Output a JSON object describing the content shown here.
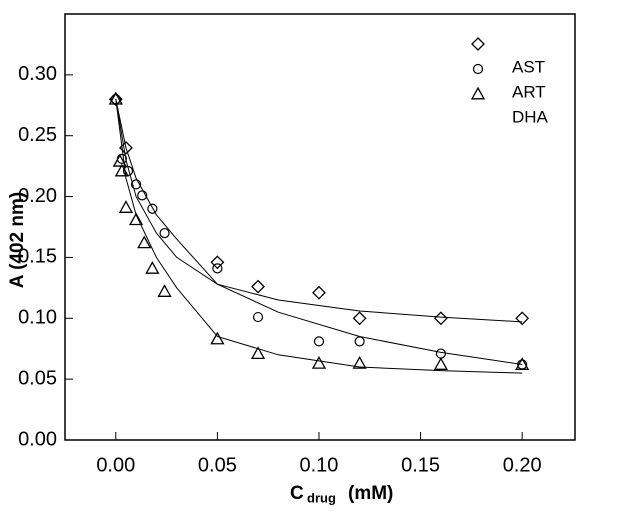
{
  "chart_data": {
    "type": "scatter",
    "ylabel": "A (402 nm)",
    "xlabel": {
      "main": "C",
      "sub": "drug",
      "unit": "(mM)"
    },
    "xlim": [
      -0.025,
      0.226
    ],
    "ylim": [
      0,
      0.35
    ],
    "xticks": [
      {
        "value": 0,
        "label": "0.00"
      },
      0.05,
      {
        "value": 0.1,
        "label": "0.10"
      },
      0.15,
      {
        "value": 0.2,
        "label": "0.20"
      }
    ],
    "yticks": [
      {
        "value": 0,
        "label": "0.00"
      },
      0.05,
      {
        "value": 0.1,
        "label": "0.10"
      },
      0.15,
      {
        "value": 0.2,
        "label": "0.20"
      },
      0.25,
      {
        "value": 0.3,
        "label": "0.30"
      }
    ],
    "series": [
      {
        "name": "AST",
        "marker": "diamond",
        "color": "#000000",
        "x": [
          0,
          0.005,
          0.05,
          0.07,
          0.1,
          0.12,
          0.16,
          0.2
        ],
        "values": [
          0.28,
          0.24,
          0.146,
          0.126,
          0.121,
          0.1,
          0.1,
          0.1
        ]
      },
      {
        "name": "ART",
        "marker": "circle",
        "color": "#000000",
        "x": [
          0,
          0.003,
          0.006,
          0.01,
          0.013,
          0.018,
          0.024,
          0.05,
          0.07,
          0.1,
          0.12,
          0.16,
          0.2
        ],
        "values": [
          0.28,
          0.231,
          0.221,
          0.21,
          0.201,
          0.19,
          0.17,
          0.141,
          0.101,
          0.081,
          0.081,
          0.071,
          0.062
        ]
      },
      {
        "name": "DHA",
        "marker": "triangle",
        "color": "#000000",
        "x": [
          0,
          0.002,
          0.003,
          0.005,
          0.01,
          0.014,
          0.018,
          0.024,
          0.05,
          0.07,
          0.1,
          0.12,
          0.16,
          0.2
        ],
        "values": [
          0.28,
          0.229,
          0.221,
          0.191,
          0.181,
          0.162,
          0.141,
          0.122,
          0.083,
          0.071,
          0.063,
          0.063,
          0.062,
          0.062
        ]
      }
    ],
    "fit_curves": [
      {
        "x": [
          0,
          0.005,
          0.01,
          0.02,
          0.03,
          0.05,
          0.08,
          0.12,
          0.16,
          0.2
        ],
        "values": [
          0.28,
          0.23,
          0.2,
          0.17,
          0.15,
          0.128,
          0.115,
          0.106,
          0.101,
          0.097
        ]
      },
      {
        "x": [
          0,
          0.005,
          0.01,
          0.02,
          0.03,
          0.05,
          0.08,
          0.12,
          0.16,
          0.2
        ],
        "values": [
          0.28,
          0.24,
          0.215,
          0.185,
          0.165,
          0.128,
          0.105,
          0.085,
          0.072,
          0.062
        ]
      },
      {
        "x": [
          0,
          0.005,
          0.01,
          0.02,
          0.03,
          0.05,
          0.08,
          0.12,
          0.16,
          0.2
        ],
        "values": [
          0.28,
          0.215,
          0.185,
          0.15,
          0.125,
          0.085,
          0.07,
          0.06,
          0.057,
          0.055
        ]
      }
    ]
  }
}
